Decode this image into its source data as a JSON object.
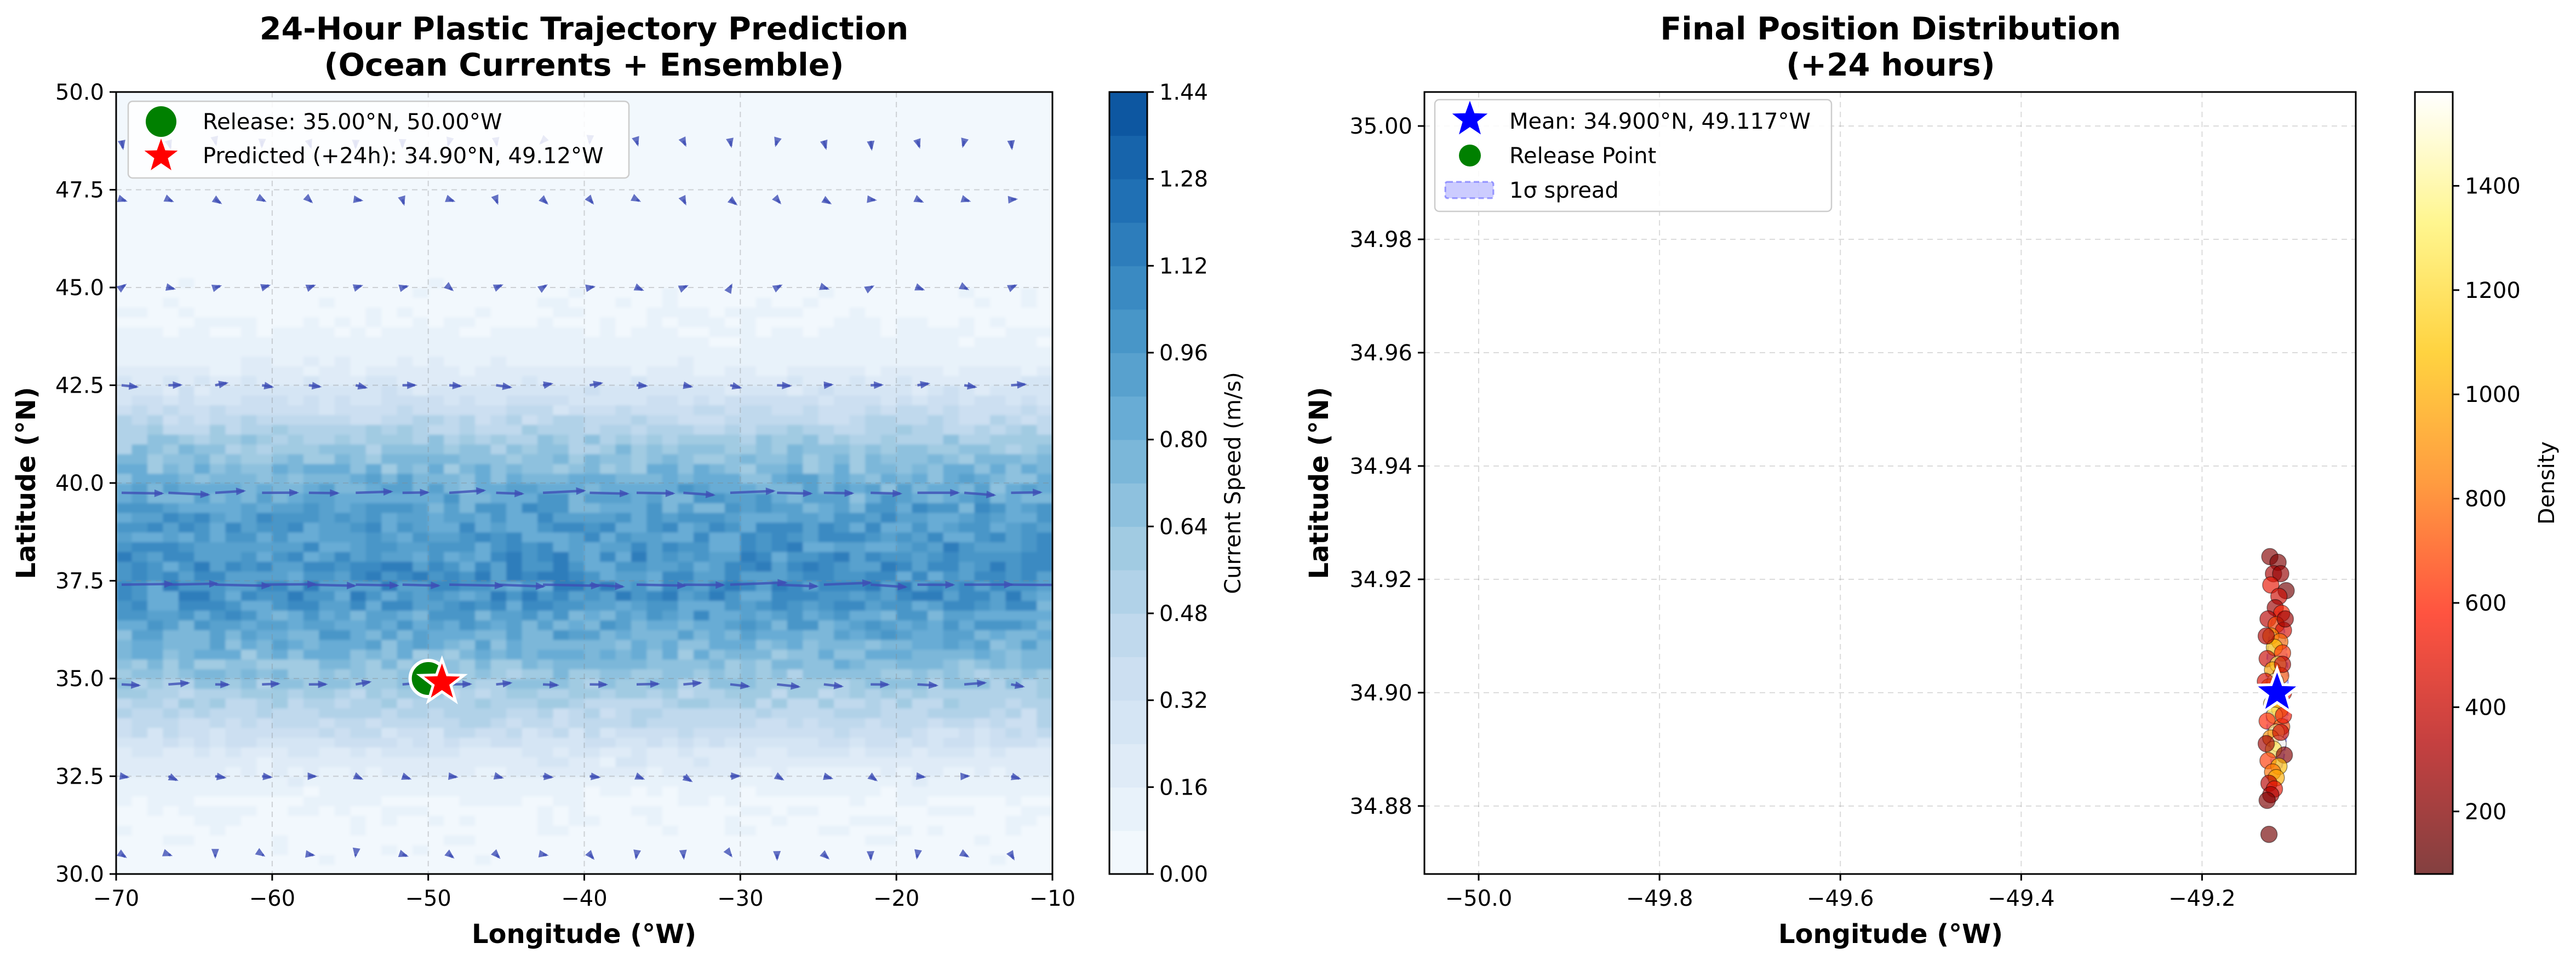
{
  "chart_data": [
    {
      "type": "heatmap",
      "title": "24-Hour Plastic Trajectory Prediction",
      "subtitle": "(Ocean Currents + Ensemble)",
      "xlabel": "Longitude (°W)",
      "ylabel": "Latitude (°N)",
      "xlim": [
        -70,
        -10
      ],
      "ylim": [
        30,
        50
      ],
      "xticks": [
        "−70",
        "−60",
        "−50",
        "−40",
        "−30",
        "−20",
        "−10"
      ],
      "yticks": [
        "30.0",
        "32.5",
        "35.0",
        "37.5",
        "40.0",
        "42.5",
        "45.0",
        "47.5",
        "50.0"
      ],
      "grid": true,
      "legend_position": "top-left",
      "colorbar": {
        "label": "Current Speed (m/s)",
        "range": [
          0,
          1.44
        ],
        "ticks": [
          "0.00",
          "0.16",
          "0.32",
          "0.48",
          "0.64",
          "0.80",
          "0.96",
          "1.12",
          "1.28",
          "1.44"
        ],
        "colormap": "Blues",
        "colors": [
          "#f7fbff",
          "#deebf7",
          "#c6dbef",
          "#9ecae1",
          "#6baed6",
          "#4292c6",
          "#2171b5",
          "#08519c"
        ]
      },
      "speed_profile": {
        "latitude": [
          30,
          32,
          33,
          34,
          35,
          36,
          37,
          37.5,
          38,
          39,
          40,
          41,
          42,
          43,
          44,
          46,
          48,
          50
        ],
        "speed": [
          0.05,
          0.08,
          0.22,
          0.45,
          0.62,
          0.82,
          0.98,
          1.02,
          1.0,
          0.95,
          0.82,
          0.6,
          0.35,
          0.15,
          0.08,
          0.04,
          0.03,
          0.02
        ]
      },
      "vector_field": {
        "color": "#3f4fb5",
        "x": [
          -70,
          -67,
          -64,
          -61,
          -58,
          -55,
          -52,
          -49,
          -46,
          -43,
          -40,
          -37,
          -34,
          -31,
          -28,
          -25,
          -22,
          -19,
          -16,
          -13,
          -10
        ],
        "rows": [
          {
            "lat": 48.75,
            "u": 0.0,
            "v": -0.12
          },
          {
            "lat": 47.25,
            "u": 0.08,
            "v": -0.06
          },
          {
            "lat": 45.0,
            "u": 0.1,
            "v": 0.0
          },
          {
            "lat": 42.5,
            "u": 0.25,
            "v": 0.0
          },
          {
            "lat": 39.75,
            "u": 0.85,
            "v": 0.0
          },
          {
            "lat": 37.4,
            "u": 1.1,
            "v": 0.0
          },
          {
            "lat": 34.85,
            "u": 0.45,
            "v": 0.0
          },
          {
            "lat": 32.5,
            "u": 0.15,
            "v": -0.05
          },
          {
            "lat": 30.5,
            "u": 0.05,
            "v": -0.05
          }
        ]
      },
      "points": [
        {
          "name": "Release: 35.00°N, 50.00°W",
          "lon": -50.0,
          "lat": 35.0,
          "marker": "circle",
          "color": "#008000"
        },
        {
          "name": "Predicted (+24h): 34.90°N, 49.12°W",
          "lon": -49.12,
          "lat": 34.9,
          "marker": "star",
          "color": "#ff0000"
        }
      ]
    },
    {
      "type": "scatter",
      "title": "Final Position Distribution",
      "subtitle": "(+24 hours)",
      "xlabel": "Longitude (°W)",
      "ylabel": "Latitude (°N)",
      "xlim": [
        -50.06,
        -49.03
      ],
      "ylim": [
        34.868,
        35.006
      ],
      "xticks": [
        -50.0,
        -49.8,
        -49.6,
        -49.4,
        -49.2
      ],
      "xtick_labels": [
        "−50.0",
        "−49.8",
        "−49.6",
        "−49.4",
        "−49.2"
      ],
      "yticks": [
        34.88,
        34.9,
        34.92,
        34.94,
        34.96,
        34.98,
        35.0
      ],
      "ytick_labels": [
        "34.88",
        "34.90",
        "34.92",
        "34.94",
        "34.96",
        "34.98",
        "35.00"
      ],
      "grid": true,
      "legend_position": "top-left",
      "colorbar": {
        "label": "Density",
        "range": [
          80,
          1580
        ],
        "ticks": [
          200,
          400,
          600,
          800,
          1000,
          1200,
          1400
        ],
        "colormap": "hot",
        "colors": [
          "#5a0000",
          "#b10000",
          "#ff1a00",
          "#ff7a00",
          "#ffc400",
          "#fff36a",
          "#ffffff"
        ]
      },
      "legend": [
        {
          "label": "Mean: 34.900°N, 49.117°W",
          "marker": "star",
          "color": "#0000ff"
        },
        {
          "label": "Release Point",
          "marker": "circle",
          "color": "#008000"
        },
        {
          "label": "1σ spread",
          "marker": "ellipse",
          "color": "#0000ff"
        }
      ],
      "mean": {
        "lon": -49.117,
        "lat": 34.9
      },
      "particles": [
        [
          -49.125,
          34.924,
          200
        ],
        [
          -49.116,
          34.923,
          180
        ],
        [
          -49.121,
          34.921,
          300
        ],
        [
          -49.113,
          34.921,
          250
        ],
        [
          -49.107,
          34.918,
          150
        ],
        [
          -49.124,
          34.919,
          500
        ],
        [
          -49.115,
          34.917,
          420
        ],
        [
          -49.119,
          34.915,
          260
        ],
        [
          -49.112,
          34.914,
          600
        ],
        [
          -49.127,
          34.913,
          350
        ],
        [
          -49.118,
          34.912,
          700
        ],
        [
          -49.11,
          34.911,
          450
        ],
        [
          -49.124,
          34.91,
          900
        ],
        [
          -49.114,
          34.909,
          800
        ],
        [
          -49.12,
          34.908,
          1100
        ],
        [
          -49.111,
          34.907,
          650
        ],
        [
          -49.128,
          34.906,
          400
        ],
        [
          -49.116,
          34.905,
          1300
        ],
        [
          -49.122,
          34.904,
          1000
        ],
        [
          -49.113,
          34.903,
          750
        ],
        [
          -49.119,
          34.902,
          1500
        ],
        [
          -49.126,
          34.901,
          850
        ],
        [
          -49.11,
          34.9,
          550
        ],
        [
          -49.117,
          34.899,
          1450
        ],
        [
          -49.123,
          34.898,
          1200
        ],
        [
          -49.114,
          34.897,
          950
        ],
        [
          -49.12,
          34.896,
          1350
        ],
        [
          -49.128,
          34.895,
          600
        ],
        [
          -49.112,
          34.894,
          700
        ],
        [
          -49.118,
          34.893,
          1400
        ],
        [
          -49.124,
          34.892,
          900
        ],
        [
          -49.116,
          34.891,
          1550
        ],
        [
          -49.121,
          34.89,
          1250
        ],
        [
          -49.109,
          34.889,
          200
        ],
        [
          -49.127,
          34.888,
          650
        ],
        [
          -49.115,
          34.887,
          1050
        ],
        [
          -49.122,
          34.886,
          800
        ],
        [
          -49.118,
          34.885,
          1000
        ],
        [
          -49.126,
          34.884,
          350
        ],
        [
          -49.12,
          34.883,
          500
        ],
        [
          -49.124,
          34.882,
          300
        ],
        [
          -49.128,
          34.881,
          180
        ],
        [
          -49.126,
          34.875,
          150
        ],
        [
          -49.113,
          34.893,
          400
        ],
        [
          -49.111,
          34.905,
          380
        ],
        [
          -49.129,
          34.91,
          320
        ],
        [
          -49.108,
          34.913,
          260
        ],
        [
          -49.13,
          34.902,
          450
        ],
        [
          -49.11,
          34.896,
          520
        ],
        [
          -49.129,
          34.891,
          280
        ]
      ]
    }
  ]
}
